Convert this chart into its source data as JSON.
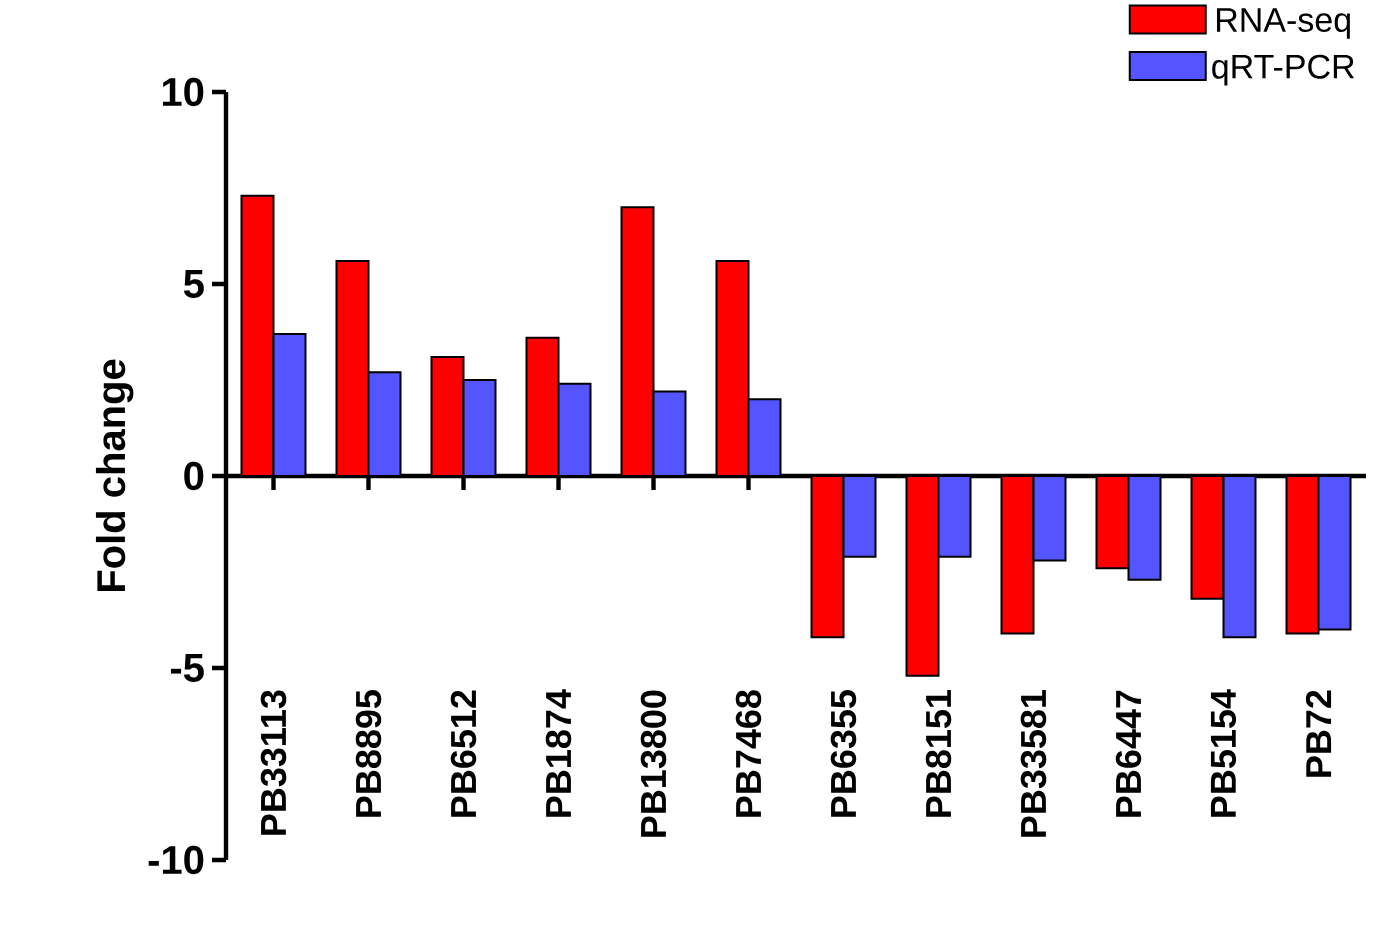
{
  "chart_data": {
    "type": "bar",
    "ylabel": "Fold change",
    "categories": [
      "PB33113",
      "PB8895",
      "PB6512",
      "PB1874",
      "PB13800",
      "PB7468",
      "PB6355",
      "PB8151",
      "PB33581",
      "PB6447",
      "PB5154",
      "PB72"
    ],
    "series": [
      {
        "name": "RNA-seq",
        "color": "#ff0000",
        "values": [
          7.3,
          5.6,
          3.1,
          3.6,
          7.0,
          5.6,
          -4.2,
          -5.2,
          -4.1,
          -2.4,
          -3.2,
          -4.1
        ]
      },
      {
        "name": "qRT-PCR",
        "color": "#5555ff",
        "values": [
          3.7,
          2.7,
          2.5,
          2.4,
          2.2,
          2.0,
          -2.1,
          -2.1,
          -2.2,
          -2.7,
          -4.2,
          -4.0
        ]
      }
    ],
    "ylim": [
      -10,
      10
    ],
    "yticks": [
      -10,
      -5,
      0,
      5,
      10
    ],
    "legend": "top right"
  }
}
